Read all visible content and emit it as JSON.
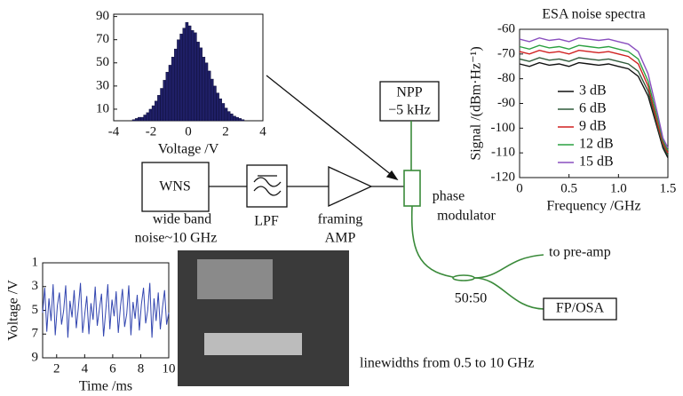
{
  "chart_data": [
    {
      "type": "histogram",
      "xlabel": "Voltage /V",
      "color": "#1f1f66",
      "bins": [
        -3,
        -2.85,
        -2.7,
        -2.55,
        -2.4,
        -2.25,
        -2.1,
        -1.95,
        -1.8,
        -1.65,
        -1.5,
        -1.35,
        -1.2,
        -1.05,
        -0.9,
        -0.75,
        -0.6,
        -0.45,
        -0.3,
        -0.15,
        0,
        0.15,
        0.3,
        0.45,
        0.6,
        0.75,
        0.9,
        1.05,
        1.2,
        1.35,
        1.5,
        1.65,
        1.8,
        1.95,
        2.1,
        2.25,
        2.4,
        2.55,
        2.7,
        2.85,
        3
      ],
      "values": [
        1,
        2,
        3,
        3,
        5,
        7,
        10,
        13,
        17,
        22,
        28,
        35,
        42,
        48,
        55,
        62,
        70,
        75,
        80,
        85,
        82,
        78,
        76,
        68,
        63,
        55,
        50,
        43,
        36,
        30,
        24,
        19,
        15,
        11,
        8,
        6,
        4,
        3,
        2,
        1
      ],
      "xlim": [
        -4,
        4
      ],
      "xticks": [
        -4,
        -2,
        0,
        2,
        4
      ],
      "ylim": [
        0,
        92
      ],
      "yticks": [
        10,
        30,
        50,
        70,
        90
      ]
    },
    {
      "type": "line",
      "xlabel": "Time /ms",
      "ylabel": "Voltage /V",
      "color": "#3346b0",
      "x": [
        1,
        1.15,
        1.3,
        1.45,
        1.6,
        1.75,
        1.9,
        2.05,
        2.2,
        2.35,
        2.5,
        2.65,
        2.8,
        2.95,
        3.1,
        3.25,
        3.4,
        3.55,
        3.7,
        3.85,
        4,
        4.15,
        4.3,
        4.45,
        4.6,
        4.75,
        4.9,
        5.05,
        5.2,
        5.35,
        5.5,
        5.65,
        5.8,
        5.95,
        6.1,
        6.25,
        6.4,
        6.55,
        6.7,
        6.85,
        7,
        7.15,
        7.3,
        7.45,
        7.6,
        7.75,
        7.9,
        8.05,
        8.2,
        8.35,
        8.5,
        8.65,
        8.8,
        8.95,
        9.1,
        9.25,
        9.4,
        9.55,
        9.7,
        9.85,
        10
      ],
      "values": [
        5.2,
        3.1,
        6.8,
        4.0,
        5.9,
        2.8,
        7.1,
        4.6,
        3.5,
        6.2,
        5.0,
        2.9,
        7.3,
        4.2,
        5.6,
        3.3,
        6.5,
        4.8,
        2.7,
        6.9,
        5.4,
        3.8,
        7.0,
        4.4,
        5.8,
        3.0,
        6.3,
        4.9,
        3.6,
        7.2,
        5.1,
        2.8,
        6.6,
        4.1,
        5.5,
        3.4,
        6.9,
        4.7,
        3.2,
        6.4,
        5.3,
        2.9,
        7.1,
        4.3,
        5.7,
        3.7,
        6.7,
        4.5,
        3.1,
        6.1,
        5.0,
        2.7,
        7.3,
        4.0,
        5.9,
        3.5,
        6.6,
        4.8,
        3.3,
        6.2,
        5.2
      ],
      "xlim": [
        1,
        10
      ],
      "xticks": [
        2,
        4,
        6,
        8,
        10
      ],
      "ylim": [
        9,
        1
      ],
      "yticks": [
        1,
        3,
        5,
        7,
        9
      ]
    },
    {
      "type": "line",
      "title": "ESA noise spectra",
      "xlabel": "Frequency /GHz",
      "ylabel": "Signal /(dBm·Hz⁻¹)",
      "x": [
        0,
        0.1,
        0.2,
        0.3,
        0.4,
        0.5,
        0.6,
        0.7,
        0.8,
        0.9,
        1.0,
        1.1,
        1.2,
        1.3,
        1.4,
        1.45,
        1.5
      ],
      "series": [
        {
          "name": "3 dB",
          "color": "#111111",
          "values": [
            -74,
            -75,
            -73.5,
            -74.5,
            -74,
            -75,
            -73.5,
            -74,
            -74.5,
            -74,
            -75,
            -76,
            -79,
            -87,
            -101,
            -108,
            -112
          ]
        },
        {
          "name": "6 dB",
          "color": "#2f5a3a",
          "values": [
            -72,
            -73,
            -71.5,
            -72.5,
            -72,
            -73,
            -71.5,
            -72,
            -72.5,
            -72,
            -73,
            -74,
            -77,
            -85,
            -100,
            -107,
            -111
          ]
        },
        {
          "name": "9 dB",
          "color": "#d02020",
          "values": [
            -69,
            -70,
            -68.5,
            -69.5,
            -69,
            -70,
            -68.5,
            -69,
            -69.5,
            -69,
            -70,
            -71,
            -74,
            -83,
            -99,
            -106,
            -110
          ]
        },
        {
          "name": "12 dB",
          "color": "#2aa040",
          "values": [
            -67,
            -68,
            -66.5,
            -67.5,
            -67,
            -68,
            -66.5,
            -67,
            -67.5,
            -67,
            -68,
            -69,
            -72,
            -81,
            -97,
            -105,
            -109
          ]
        },
        {
          "name": "15 dB",
          "color": "#8a4fbf",
          "values": [
            -64,
            -65,
            -63.5,
            -64.5,
            -64,
            -65,
            -63.5,
            -64,
            -64.5,
            -64,
            -65,
            -66,
            -69,
            -78,
            -95,
            -104,
            -108
          ]
        }
      ],
      "xlim": [
        0,
        1.5
      ],
      "xticks": [
        0,
        0.5,
        {
          "value": 1,
          "label": "1.0"
        },
        1.5
      ],
      "ylim": [
        -120,
        -60
      ],
      "yticks": [
        -60,
        -70,
        -80,
        -90,
        -100,
        -110,
        -120
      ]
    }
  ],
  "nodes": {
    "wns": {
      "label": "WNS",
      "caption": [
        "wide band",
        "noise~10 GHz"
      ]
    },
    "lpf": {
      "caption": "LPF"
    },
    "amp": {
      "caption": [
        "framing",
        "AMP"
      ]
    },
    "npp": {
      "label": [
        "NPP",
        "−5 kHz"
      ]
    },
    "modulator": {
      "caption": [
        "phase",
        "modulator"
      ]
    },
    "pre_amp": {
      "label": "to pre-amp"
    },
    "coupler": {
      "label": "50:50"
    },
    "fp_osa": {
      "label": "FP/OSA"
    },
    "photo": {
      "caption": "linewidths from 0.5 to 10 GHz"
    }
  }
}
